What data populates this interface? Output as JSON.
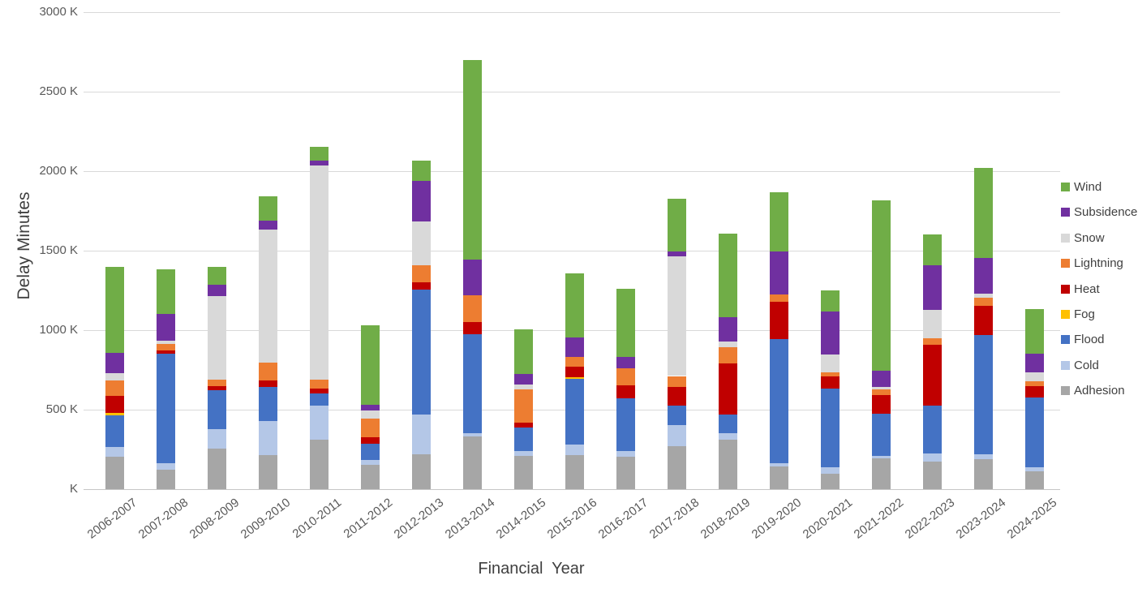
{
  "chart_data": {
    "type": "bar",
    "stacked": true,
    "title": "",
    "xlabel": "Financial  Year",
    "ylabel": "Delay Minutes",
    "ylim": [
      0,
      3000
    ],
    "y_unit": "K",
    "grid": true,
    "y_ticks": [
      "3000 K",
      "2500 K",
      "2000 K",
      "1500 K",
      "1000 K",
      "500 K",
      "K"
    ],
    "legend_position": "right",
    "legend": [
      "Wind",
      "Subsidence",
      "Snow",
      "Lightning",
      "Heat",
      "Fog",
      "Flood",
      "Cold",
      "Adhesion"
    ],
    "categories": [
      "2006-2007",
      "2007-2008",
      "2008-2009",
      "2009-2010",
      "2010-2011",
      "2011-2012",
      "2012-2013",
      "2013-2014",
      "2014-2015",
      "2015-2016",
      "2016-2017",
      "2017-2018",
      "2018-2019",
      "2019-2020",
      "2020-2021",
      "2021-2022",
      "2022-2023",
      "2023-2024",
      "2024-2025"
    ],
    "series": [
      {
        "name": "Adhesion",
        "color": "#A6A6A6",
        "values": [
          204,
          122,
          255,
          212,
          310,
          154,
          218,
          332,
          207,
          217,
          205,
          273,
          314,
          144,
          98,
          196,
          176,
          188,
          110
        ]
      },
      {
        "name": "Cold",
        "color": "#B4C7E7",
        "values": [
          63,
          40,
          123,
          215,
          217,
          28,
          253,
          18,
          35,
          65,
          34,
          128,
          39,
          22,
          38,
          14,
          51,
          34,
          29
        ]
      },
      {
        "name": "Flood",
        "color": "#4472C4",
        "values": [
          196,
          692,
          243,
          217,
          76,
          102,
          785,
          626,
          145,
          413,
          333,
          125,
          116,
          780,
          495,
          263,
          297,
          746,
          437
        ]
      },
      {
        "name": "Fog",
        "color": "#FFC000",
        "values": [
          15,
          0,
          0,
          0,
          0,
          0,
          0,
          0,
          0,
          10,
          0,
          0,
          0,
          0,
          0,
          0,
          0,
          0,
          0
        ]
      },
      {
        "name": "Heat",
        "color": "#C00000",
        "values": [
          109,
          17,
          25,
          39,
          29,
          43,
          44,
          73,
          33,
          66,
          81,
          117,
          324,
          234,
          76,
          121,
          384,
          184,
          71
        ]
      },
      {
        "name": "Lightning",
        "color": "#ED7D31",
        "values": [
          97,
          45,
          43,
          114,
          59,
          115,
          106,
          173,
          210,
          60,
          106,
          69,
          102,
          44,
          30,
          32,
          39,
          51,
          31
        ]
      },
      {
        "name": "Snow",
        "color": "#D9D9D9",
        "values": [
          47,
          17,
          525,
          835,
          1346,
          51,
          277,
          0,
          30,
          0,
          0,
          750,
          34,
          0,
          110,
          17,
          179,
          26,
          59
        ]
      },
      {
        "name": "Subsidence",
        "color": "#7030A0",
        "values": [
          128,
          167,
          70,
          59,
          29,
          37,
          256,
          224,
          66,
          125,
          72,
          35,
          151,
          273,
          272,
          103,
          282,
          227,
          114
        ]
      },
      {
        "name": "Wind",
        "color": "#70AD47",
        "values": [
          539,
          284,
          116,
          149,
          90,
          501,
          127,
          1255,
          278,
          401,
          427,
          332,
          527,
          371,
          130,
          1071,
          196,
          563,
          281
        ]
      }
    ],
    "totals": [
      1398,
      1384,
      1400,
      1840,
      2156,
      1031,
      2066,
      2701,
      1004,
      1357,
      1258,
      1829,
      1607,
      1868,
      1249,
      1817,
      1604,
      2019,
      1132
    ]
  },
  "palette": {
    "background": "#FFFFFF",
    "gridline": "#D9D9D9",
    "axis_line": "#C6C6C6",
    "tick_text": "#595959",
    "title_text": "#404040",
    "legend_text": "#404040"
  }
}
